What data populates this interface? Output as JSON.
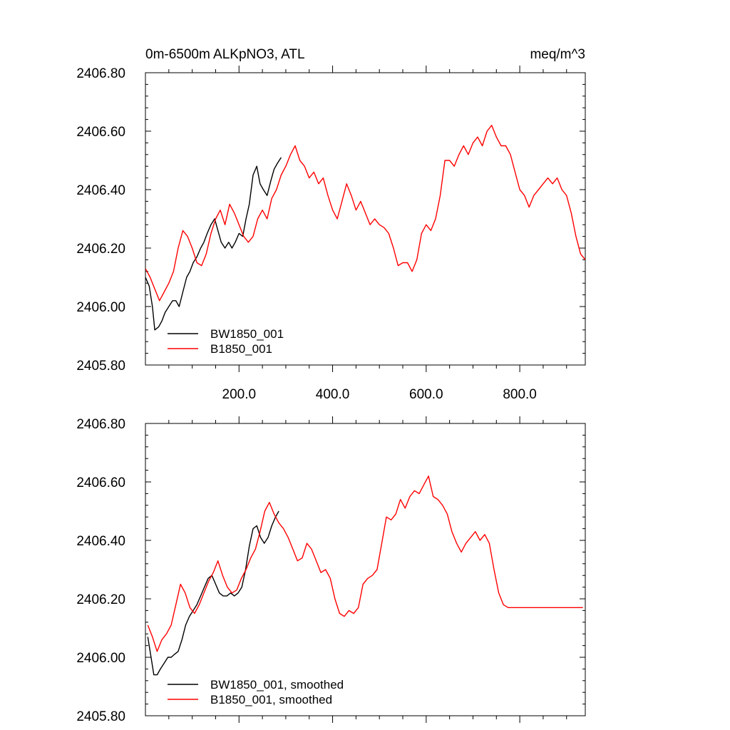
{
  "chart_data": [
    {
      "type": "line",
      "title": "0m-6500m ALKpNO3, ATL",
      "units": "meq/m^3",
      "xlim": [
        0,
        940
      ],
      "ylim": [
        2405.8,
        2406.8
      ],
      "xticks": [
        200,
        400,
        600,
        800
      ],
      "xtick_labels": [
        "200.0",
        "400.0",
        "600.0",
        "800.0"
      ],
      "yticks": [
        2405.8,
        2406.0,
        2406.2,
        2406.4,
        2406.6,
        2406.8
      ],
      "ytick_labels": [
        "2405.80",
        "2406.00",
        "2406.20",
        "2406.40",
        "2406.60",
        "2406.80"
      ],
      "legend_position": "bottom-left",
      "series": [
        {
          "name": "BW1850_001",
          "color": "#000000",
          "x": [
            0,
            8,
            15,
            20,
            28,
            35,
            42,
            50,
            58,
            65,
            72,
            80,
            88,
            95,
            102,
            110,
            118,
            125,
            132,
            140,
            148,
            155,
            162,
            170,
            178,
            185,
            192,
            200,
            208,
            215,
            222,
            230,
            238,
            245,
            252,
            260,
            268,
            275,
            282,
            290
          ],
          "y": [
            2406.1,
            2406.07,
            2406.0,
            2405.92,
            2405.93,
            2405.95,
            2405.98,
            2406.0,
            2406.02,
            2406.02,
            2406.0,
            2406.05,
            2406.1,
            2406.12,
            2406.15,
            2406.17,
            2406.2,
            2406.22,
            2406.25,
            2406.28,
            2406.3,
            2406.26,
            2406.22,
            2406.2,
            2406.22,
            2406.2,
            2406.22,
            2406.25,
            2406.24,
            2406.3,
            2406.35,
            2406.45,
            2406.48,
            2406.42,
            2406.4,
            2406.38,
            2406.43,
            2406.47,
            2406.49,
            2406.51
          ]
        },
        {
          "name": "B1850_001",
          "color": "#ff0000",
          "x": [
            0,
            10,
            20,
            30,
            40,
            50,
            60,
            70,
            80,
            90,
            100,
            110,
            120,
            130,
            140,
            150,
            160,
            170,
            180,
            190,
            200,
            210,
            220,
            230,
            240,
            250,
            260,
            270,
            280,
            290,
            300,
            310,
            320,
            330,
            340,
            350,
            360,
            370,
            380,
            390,
            400,
            410,
            420,
            430,
            440,
            450,
            460,
            470,
            480,
            490,
            500,
            510,
            520,
            530,
            540,
            550,
            560,
            570,
            580,
            590,
            600,
            610,
            620,
            630,
            640,
            650,
            660,
            670,
            680,
            690,
            700,
            710,
            720,
            730,
            740,
            750,
            760,
            770,
            780,
            790,
            800,
            810,
            820,
            830,
            840,
            850,
            860,
            870,
            880,
            890,
            900,
            910,
            920,
            930,
            940
          ],
          "y": [
            2406.13,
            2406.1,
            2406.06,
            2406.02,
            2406.05,
            2406.08,
            2406.12,
            2406.2,
            2406.26,
            2406.24,
            2406.2,
            2406.15,
            2406.14,
            2406.18,
            2406.25,
            2406.3,
            2406.33,
            2406.28,
            2406.35,
            2406.32,
            2406.28,
            2406.24,
            2406.22,
            2406.24,
            2406.3,
            2406.33,
            2406.3,
            2406.37,
            2406.4,
            2406.45,
            2406.48,
            2406.52,
            2406.55,
            2406.5,
            2406.48,
            2406.44,
            2406.46,
            2406.42,
            2406.44,
            2406.38,
            2406.33,
            2406.3,
            2406.36,
            2406.42,
            2406.38,
            2406.33,
            2406.36,
            2406.32,
            2406.28,
            2406.3,
            2406.28,
            2406.27,
            2406.25,
            2406.2,
            2406.14,
            2406.15,
            2406.15,
            2406.12,
            2406.16,
            2406.25,
            2406.28,
            2406.26,
            2406.3,
            2406.38,
            2406.5,
            2406.5,
            2406.48,
            2406.52,
            2406.55,
            2406.52,
            2406.56,
            2406.58,
            2406.55,
            2406.6,
            2406.62,
            2406.58,
            2406.55,
            2406.55,
            2406.52,
            2406.46,
            2406.4,
            2406.38,
            2406.34,
            2406.38,
            2406.4,
            2406.42,
            2406.44,
            2406.42,
            2406.44,
            2406.4,
            2406.38,
            2406.32,
            2406.24,
            2406.18,
            2406.16
          ]
        }
      ]
    },
    {
      "type": "line",
      "title": "",
      "units": "",
      "xlim": [
        0,
        940
      ],
      "ylim": [
        2405.8,
        2406.8
      ],
      "xticks": [
        200,
        400,
        600,
        800
      ],
      "xtick_labels": [],
      "yticks": [
        2405.8,
        2406.0,
        2406.2,
        2406.4,
        2406.6,
        2406.8
      ],
      "ytick_labels": [
        "2405.80",
        "2406.00",
        "2406.20",
        "2406.40",
        "2406.60",
        "2406.80"
      ],
      "legend_position": "bottom-left",
      "series": [
        {
          "name": "BW1850_001, smoothed",
          "color": "#000000",
          "x": [
            5,
            12,
            18,
            25,
            32,
            40,
            48,
            55,
            62,
            70,
            78,
            86,
            94,
            102,
            110,
            118,
            126,
            134,
            142,
            150,
            158,
            166,
            174,
            182,
            190,
            198,
            206,
            214,
            222,
            230,
            238,
            246,
            254,
            262,
            270,
            278,
            285
          ],
          "y": [
            2406.07,
            2406.0,
            2405.94,
            2405.94,
            2405.96,
            2405.98,
            2406.0,
            2406.0,
            2406.01,
            2406.02,
            2406.06,
            2406.11,
            2406.14,
            2406.16,
            2406.18,
            2406.21,
            2406.24,
            2406.27,
            2406.28,
            2406.25,
            2406.22,
            2406.21,
            2406.21,
            2406.22,
            2406.21,
            2406.22,
            2406.24,
            2406.3,
            2406.38,
            2406.44,
            2406.45,
            2406.41,
            2406.39,
            2406.41,
            2406.45,
            2406.48,
            2406.5
          ]
        },
        {
          "name": "B1850_001, smoothed",
          "color": "#ff0000",
          "x": [
            5,
            15,
            25,
            35,
            45,
            55,
            65,
            75,
            85,
            95,
            105,
            115,
            125,
            135,
            145,
            155,
            165,
            175,
            185,
            195,
            205,
            215,
            225,
            235,
            245,
            255,
            265,
            275,
            285,
            295,
            305,
            315,
            325,
            335,
            345,
            355,
            365,
            375,
            385,
            395,
            405,
            415,
            425,
            435,
            445,
            455,
            465,
            475,
            485,
            495,
            505,
            515,
            525,
            535,
            545,
            555,
            565,
            575,
            585,
            595,
            605,
            615,
            625,
            635,
            645,
            655,
            665,
            675,
            685,
            695,
            705,
            715,
            725,
            735,
            745,
            755,
            765,
            775,
            785,
            795,
            805,
            815,
            825,
            835,
            845,
            855,
            865,
            875,
            885,
            895,
            905,
            915,
            925,
            935
          ],
          "y": [
            2406.11,
            2406.07,
            2406.02,
            2406.06,
            2406.08,
            2406.11,
            2406.18,
            2406.25,
            2406.22,
            2406.17,
            2406.15,
            2406.18,
            2406.22,
            2406.26,
            2406.29,
            2406.33,
            2406.28,
            2406.24,
            2406.22,
            2406.23,
            2406.27,
            2406.3,
            2406.34,
            2406.37,
            2406.43,
            2406.5,
            2406.53,
            2406.49,
            2406.46,
            2406.44,
            2406.41,
            2406.37,
            2406.33,
            2406.34,
            2406.39,
            2406.37,
            2406.33,
            2406.29,
            2406.3,
            2406.27,
            2406.2,
            2406.15,
            2406.14,
            2406.16,
            2406.15,
            2406.17,
            2406.25,
            2406.27,
            2406.28,
            2406.3,
            2406.39,
            2406.48,
            2406.47,
            2406.49,
            2406.54,
            2406.51,
            2406.55,
            2406.57,
            2406.56,
            2406.59,
            2406.62,
            2406.55,
            2406.54,
            2406.52,
            2406.49,
            2406.43,
            2406.39,
            2406.36,
            2406.39,
            2406.41,
            2406.43,
            2406.4,
            2406.42,
            2406.39,
            2406.3,
            2406.22,
            2406.18,
            2406.17,
            2406.17,
            2406.17,
            2406.17,
            2406.17,
            2406.17,
            2406.17,
            2406.17,
            2406.17,
            2406.17,
            2406.17,
            2406.17,
            2406.17,
            2406.17,
            2406.17,
            2406.17,
            2406.17
          ]
        }
      ]
    }
  ]
}
